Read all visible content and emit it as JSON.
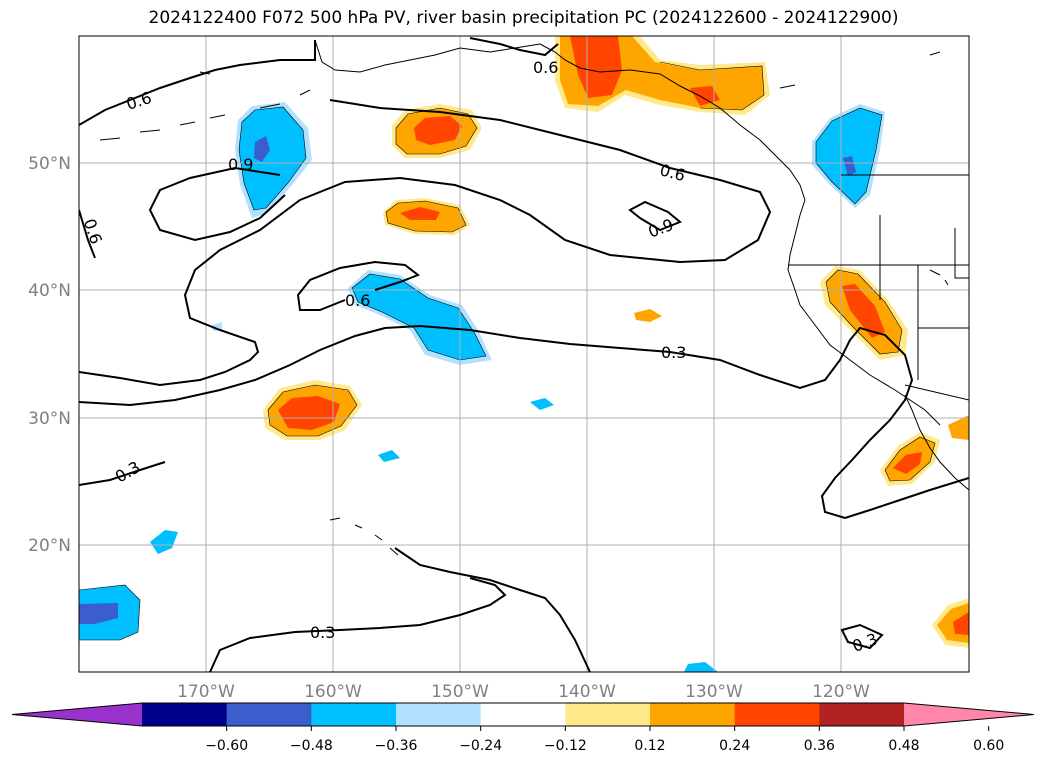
{
  "title": "2024122400 F072 500 hPa PV, river basin precipitation PC (2024122600 - 2024122900)",
  "map": {
    "lat_labels": [
      "50°N",
      "40°N",
      "30°N",
      "20°N"
    ],
    "lon_labels": [
      "170°W",
      "160°W",
      "150°W",
      "140°W",
      "130°W",
      "120°W"
    ],
    "contour_labels": [
      "0.6",
      "0.6",
      "0.9",
      "0.6",
      "0.9",
      "0.6",
      "0.6",
      "0.3",
      "0.3",
      "0.3",
      "0.3"
    ],
    "colors": {
      "pos_light": "#ffe98a",
      "pos_mid": "#ffa500",
      "pos_strong": "#ff4500",
      "neg_light": "#00bfff",
      "neg_strong": "#3a5fcd"
    }
  },
  "colorbar": {
    "colors": [
      "#9932cc",
      "#00008b",
      "#3a5fcd",
      "#00bfff",
      "#b0e2ff",
      "#ffffff",
      "#ffe98a",
      "#ffa500",
      "#ff4500",
      "#b22222",
      "#ff88aa"
    ],
    "ticks": [
      "−0.60",
      "−0.48",
      "−0.36",
      "−0.24",
      "−0.12",
      "0.12",
      "0.24",
      "0.36",
      "0.48",
      "0.60"
    ]
  }
}
